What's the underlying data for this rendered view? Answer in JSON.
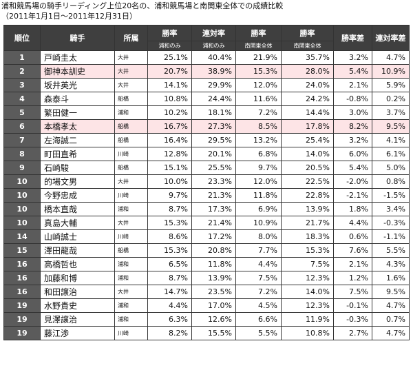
{
  "title_line1": "浦和競馬場の騎手リーディング上位20名の、浦和競馬場と南関東全体での成績比較",
  "title_line2": "（2011年1月1日〜2011年12月31日）",
  "headers": {
    "rank": "順位",
    "jockey": "騎手",
    "affiliation": "所属",
    "win_rate_urawa": "勝率",
    "place_rate_urawa": "連対率",
    "win_rate_south": "勝率",
    "place_rate_south": "勝率",
    "win_diff": "勝率差",
    "place_diff": "連対率差",
    "sub_urawa1": "浦和のみ",
    "sub_urawa2": "浦和のみ",
    "sub_south1": "南関東全体",
    "sub_south2": "南関東全体"
  },
  "highlight_color": "#fde4e6",
  "header_color": "#3f3f3f",
  "rows": [
    {
      "rank": "1",
      "name": "戸崎圭太",
      "aff": "大井",
      "w1": "25.1%",
      "p1": "40.4%",
      "w2": "21.9%",
      "p2": "35.7%",
      "wd": "3.2%",
      "pd": "4.7%",
      "hl": false
    },
    {
      "rank": "2",
      "name": "御神本訓史",
      "aff": "大井",
      "w1": "20.7%",
      "p1": "38.9%",
      "w2": "15.3%",
      "p2": "28.0%",
      "wd": "5.4%",
      "pd": "10.9%",
      "hl": true
    },
    {
      "rank": "3",
      "name": "坂井英光",
      "aff": "大井",
      "w1": "14.1%",
      "p1": "29.9%",
      "w2": "12.0%",
      "p2": "24.0%",
      "wd": "2.1%",
      "pd": "5.9%",
      "hl": false
    },
    {
      "rank": "4",
      "name": "森泰斗",
      "aff": "船橋",
      "w1": "10.8%",
      "p1": "24.4%",
      "w2": "11.6%",
      "p2": "24.2%",
      "wd": "-0.8%",
      "pd": "0.2%",
      "hl": false
    },
    {
      "rank": "5",
      "name": "繁田健一",
      "aff": "浦和",
      "w1": "10.2%",
      "p1": "18.1%",
      "w2": "7.2%",
      "p2": "14.4%",
      "wd": "3.0%",
      "pd": "3.7%",
      "hl": false
    },
    {
      "rank": "6",
      "name": "本橋孝太",
      "aff": "船橋",
      "w1": "16.7%",
      "p1": "27.3%",
      "w2": "8.5%",
      "p2": "17.8%",
      "wd": "8.2%",
      "pd": "9.5%",
      "hl": true
    },
    {
      "rank": "7",
      "name": "左海誠二",
      "aff": "船橋",
      "w1": "16.4%",
      "p1": "29.5%",
      "w2": "13.2%",
      "p2": "25.4%",
      "wd": "3.2%",
      "pd": "4.1%",
      "hl": false
    },
    {
      "rank": "8",
      "name": "町田直希",
      "aff": "川崎",
      "w1": "12.8%",
      "p1": "20.1%",
      "w2": "6.8%",
      "p2": "14.0%",
      "wd": "6.0%",
      "pd": "6.1%",
      "hl": false
    },
    {
      "rank": "9",
      "name": "石崎駿",
      "aff": "船橋",
      "w1": "15.1%",
      "p1": "25.5%",
      "w2": "9.7%",
      "p2": "20.5%",
      "wd": "5.4%",
      "pd": "5.0%",
      "hl": false
    },
    {
      "rank": "10",
      "name": "的場文男",
      "aff": "大井",
      "w1": "10.0%",
      "p1": "23.3%",
      "w2": "12.0%",
      "p2": "22.5%",
      "wd": "-2.0%",
      "pd": "0.8%",
      "hl": false
    },
    {
      "rank": "10",
      "name": "今野忠成",
      "aff": "川崎",
      "w1": "9.7%",
      "p1": "21.3%",
      "w2": "11.8%",
      "p2": "22.8%",
      "wd": "-2.1%",
      "pd": "-1.5%",
      "hl": false
    },
    {
      "rank": "10",
      "name": "橋本直哉",
      "aff": "浦和",
      "w1": "8.7%",
      "p1": "17.3%",
      "w2": "6.9%",
      "p2": "13.9%",
      "wd": "1.8%",
      "pd": "3.4%",
      "hl": false
    },
    {
      "rank": "10",
      "name": "真島大輔",
      "aff": "大井",
      "w1": "15.3%",
      "p1": "21.4%",
      "w2": "10.9%",
      "p2": "21.7%",
      "wd": "4.4%",
      "pd": "-0.3%",
      "hl": false
    },
    {
      "rank": "14",
      "name": "山崎誠士",
      "aff": "川崎",
      "w1": "8.6%",
      "p1": "17.2%",
      "w2": "8.0%",
      "p2": "18.3%",
      "wd": "0.6%",
      "pd": "-1.1%",
      "hl": false
    },
    {
      "rank": "15",
      "name": "澤田龍哉",
      "aff": "船橋",
      "w1": "15.3%",
      "p1": "20.8%",
      "w2": "7.7%",
      "p2": "15.3%",
      "wd": "7.6%",
      "pd": "5.5%",
      "hl": false
    },
    {
      "rank": "16",
      "name": "高橋哲也",
      "aff": "浦和",
      "w1": "6.5%",
      "p1": "11.8%",
      "w2": "4.4%",
      "p2": "7.5%",
      "wd": "2.1%",
      "pd": "4.3%",
      "hl": false
    },
    {
      "rank": "16",
      "name": "加藤和博",
      "aff": "浦和",
      "w1": "8.7%",
      "p1": "13.9%",
      "w2": "7.5%",
      "p2": "12.3%",
      "wd": "1.2%",
      "pd": "1.6%",
      "hl": false
    },
    {
      "rank": "16",
      "name": "和田譲治",
      "aff": "大井",
      "w1": "14.7%",
      "p1": "23.5%",
      "w2": "7.2%",
      "p2": "14.0%",
      "wd": "7.5%",
      "pd": "9.5%",
      "hl": false
    },
    {
      "rank": "19",
      "name": "水野貴史",
      "aff": "浦和",
      "w1": "4.4%",
      "p1": "17.0%",
      "w2": "4.5%",
      "p2": "12.3%",
      "wd": "-0.1%",
      "pd": "4.7%",
      "hl": false
    },
    {
      "rank": "19",
      "name": "見澤譲治",
      "aff": "浦和",
      "w1": "6.3%",
      "p1": "12.6%",
      "w2": "6.6%",
      "p2": "11.9%",
      "wd": "-0.3%",
      "pd": "0.7%",
      "hl": false
    },
    {
      "rank": "19",
      "name": "藤江渉",
      "aff": "川崎",
      "w1": "8.2%",
      "p1": "15.5%",
      "w2": "5.5%",
      "p2": "10.8%",
      "wd": "2.7%",
      "pd": "4.7%",
      "hl": false
    }
  ]
}
